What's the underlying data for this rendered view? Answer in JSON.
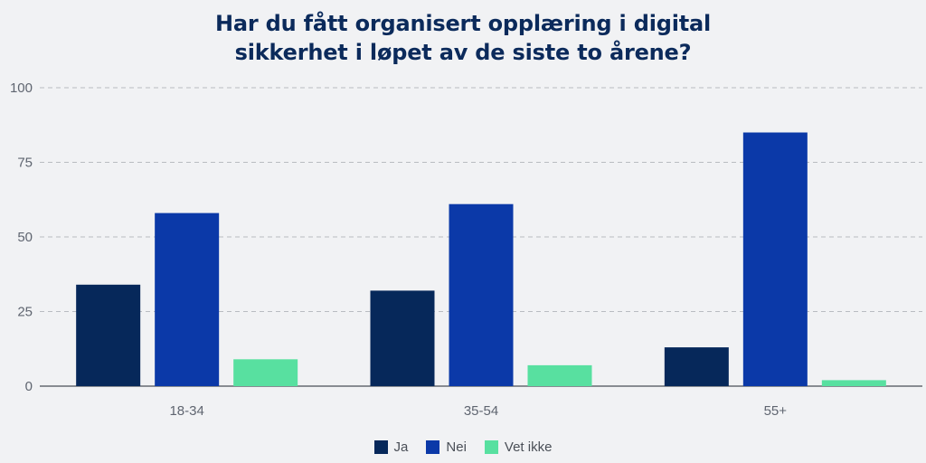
{
  "title_lines": [
    "Har du fått organisert opplæring i digital",
    "sikkerhet i løpet av de siste to årene?"
  ],
  "colors": {
    "background": "#f1f2f4",
    "grid": "#b9bcc1",
    "axis": "#4a4f57",
    "title": "#0b2a5b"
  },
  "chart_data": {
    "type": "bar",
    "title": "Har du fått organisert opplæring i digital sikkerhet i løpet av de siste to årene?",
    "categories": [
      "18-34",
      "35-54",
      "55+"
    ],
    "series": [
      {
        "name": "Ja",
        "color": "#06285a",
        "values": [
          34,
          32,
          13
        ]
      },
      {
        "name": "Nei",
        "color": "#0b39a8",
        "values": [
          58,
          61,
          85
        ]
      },
      {
        "name": "Vet ikke",
        "color": "#58e0a0",
        "values": [
          9,
          7,
          2
        ]
      }
    ],
    "yticks": [
      0,
      25,
      50,
      75,
      100
    ],
    "ylim": [
      0,
      100
    ],
    "grid": true,
    "legend_position": "bottom-center"
  }
}
